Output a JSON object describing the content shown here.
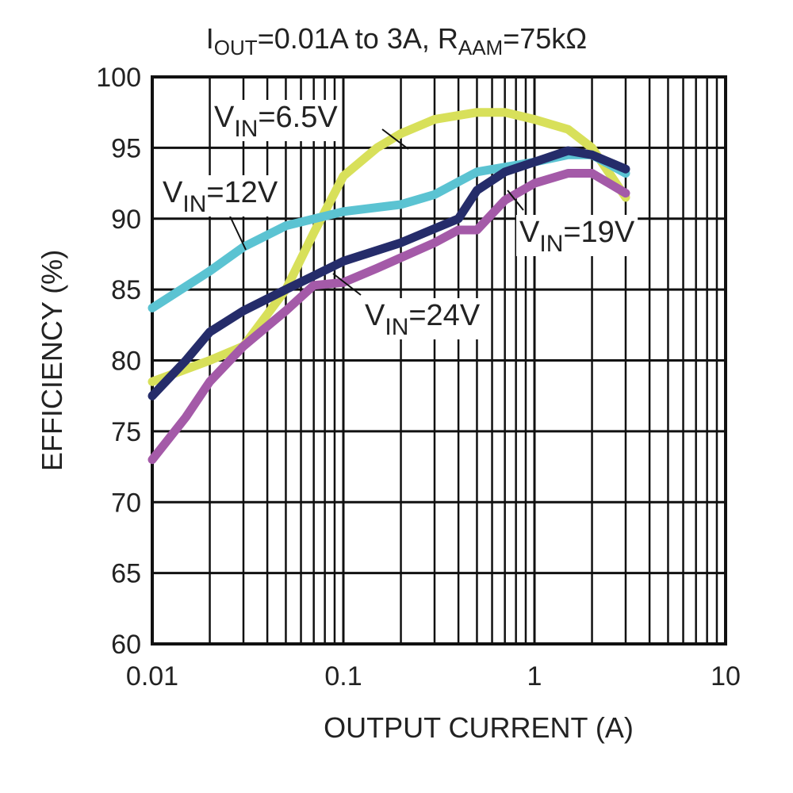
{
  "chart_data": {
    "type": "line",
    "title": {
      "parts": [
        {
          "text": "I",
          "sub": false
        },
        {
          "text": "OUT",
          "sub": true
        },
        {
          "text": "=0.01A to 3A, R",
          "sub": false
        },
        {
          "text": "AAM",
          "sub": true
        },
        {
          "text": "=75kΩ",
          "sub": false
        }
      ]
    },
    "xlabel": "OUTPUT CURRENT (A)",
    "ylabel": "EFFICIENCY (%)",
    "xscale": "log",
    "xlim": [
      0.01,
      10
    ],
    "ylim": [
      60,
      100
    ],
    "xticks": [
      "0.01",
      "0.1",
      "1",
      "10"
    ],
    "yticks": [
      "60",
      "65",
      "70",
      "75",
      "80",
      "85",
      "90",
      "95",
      "100"
    ],
    "grid": true,
    "series": [
      {
        "name": "VIN=6.5V",
        "label_main": "V",
        "label_sub": "IN",
        "label_rest": "=6.5V",
        "color": "#d8e05a",
        "x": [
          0.01,
          0.02,
          0.03,
          0.05,
          0.07,
          0.1,
          0.15,
          0.2,
          0.3,
          0.5,
          0.7,
          1,
          1.5,
          2,
          3
        ],
        "y": [
          78.5,
          80,
          81,
          85,
          89,
          93,
          95,
          96,
          97,
          97.5,
          97.5,
          97,
          96.3,
          95,
          91.5
        ]
      },
      {
        "name": "VIN=12V",
        "label_main": "V",
        "label_sub": "IN",
        "label_rest": "=12V",
        "color": "#5bc3d2",
        "x": [
          0.01,
          0.02,
          0.03,
          0.05,
          0.1,
          0.2,
          0.3,
          0.5,
          1,
          1.5,
          2,
          3
        ],
        "y": [
          83.7,
          86.3,
          88,
          89.5,
          90.5,
          91,
          91.7,
          93.3,
          94,
          94.5,
          94.5,
          93.2
        ]
      },
      {
        "name": "VIN=19V",
        "label_main": "V",
        "label_sub": "IN",
        "label_rest": "=19V",
        "color": "#252c6a",
        "x": [
          0.01,
          0.015,
          0.02,
          0.03,
          0.05,
          0.1,
          0.2,
          0.3,
          0.4,
          0.5,
          0.7,
          1,
          1.5,
          2,
          3
        ],
        "y": [
          77.5,
          80,
          82,
          83.5,
          85,
          87,
          88.3,
          89.3,
          90,
          92,
          93.3,
          94,
          94.8,
          94.5,
          93.5
        ]
      },
      {
        "name": "VIN=24V",
        "label_main": "V",
        "label_sub": "IN",
        "label_rest": "=24V",
        "color": "#a45aa8",
        "x": [
          0.01,
          0.015,
          0.02,
          0.03,
          0.05,
          0.07,
          0.1,
          0.15,
          0.3,
          0.4,
          0.5,
          0.7,
          1,
          1.5,
          2,
          3
        ],
        "y": [
          73,
          76,
          78.5,
          81,
          83.5,
          85.3,
          85.5,
          86.5,
          88.3,
          89.2,
          89.2,
          91.3,
          92.5,
          93.2,
          93.2,
          91.8
        ]
      }
    ]
  }
}
